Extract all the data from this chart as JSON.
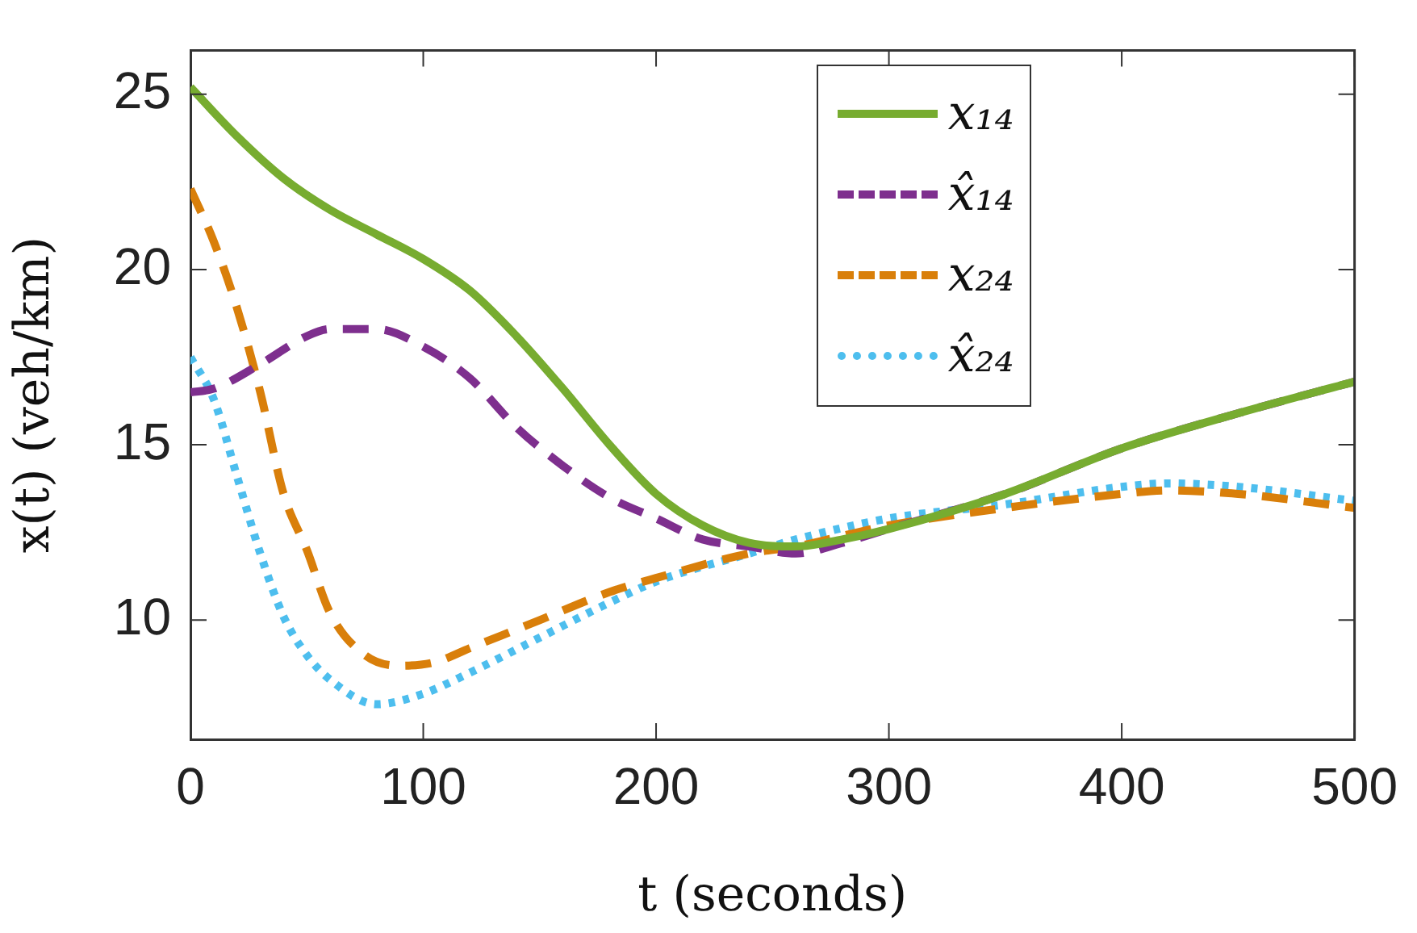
{
  "chart_data": {
    "type": "line",
    "xlabel": "t (seconds)",
    "ylabel": "x(t) (veh/km)",
    "xlim": [
      0,
      500
    ],
    "xticks": [
      0,
      100,
      200,
      300,
      400,
      500
    ],
    "ylim": [
      6.6,
      26.25
    ],
    "yticks": [
      10,
      15,
      20,
      25
    ],
    "grid": false,
    "legend": "top right",
    "marker": "none",
    "series": [
      {
        "name": "x₁₄",
        "color": "#77ac30",
        "line_style": "solid",
        "x": [
          0,
          20,
          40,
          60,
          80,
          100,
          120,
          140,
          160,
          180,
          200,
          220,
          240,
          260,
          280,
          300,
          350,
          400,
          450,
          500
        ],
        "values": [
          25.2,
          23.8,
          22.6,
          21.7,
          21.0,
          20.3,
          19.4,
          18.1,
          16.6,
          15.0,
          13.6,
          12.7,
          12.2,
          12.1,
          12.3,
          12.6,
          13.6,
          14.9,
          15.9,
          16.8
        ]
      },
      {
        "name": "x̂₁₄",
        "color": "#7e2f8e",
        "line_style": "dashed",
        "x": [
          0,
          10,
          30,
          50,
          60,
          80,
          100,
          120,
          140,
          160,
          180,
          200,
          220,
          240,
          260,
          280,
          300,
          350,
          400,
          450,
          500
        ],
        "values": [
          16.5,
          16.6,
          17.3,
          18.1,
          18.3,
          18.3,
          17.8,
          16.9,
          15.5,
          14.4,
          13.5,
          12.9,
          12.3,
          12.1,
          11.9,
          12.2,
          12.6,
          13.6,
          14.9,
          15.9,
          16.8
        ]
      },
      {
        "name": "x₂₄",
        "color": "#d97f0a",
        "line_style": "dashed",
        "x": [
          0,
          10,
          20,
          30,
          40,
          50,
          60,
          75,
          90,
          105,
          120,
          150,
          180,
          200,
          240,
          260,
          300,
          350,
          400,
          420,
          450,
          500
        ],
        "values": [
          22.3,
          20.8,
          18.9,
          16.5,
          13.6,
          12.0,
          10.2,
          9.0,
          8.7,
          8.8,
          9.2,
          10.0,
          10.8,
          11.2,
          11.9,
          12.1,
          12.7,
          13.2,
          13.6,
          13.7,
          13.6,
          13.2
        ]
      },
      {
        "name": "x̂₂₄",
        "color": "#4dbeee",
        "line_style": "dotted",
        "x": [
          0,
          10,
          20,
          30,
          40,
          50,
          60,
          80,
          100,
          120,
          150,
          180,
          200,
          240,
          260,
          300,
          350,
          400,
          420,
          450,
          500
        ],
        "values": [
          17.5,
          16.3,
          14.1,
          11.9,
          10.1,
          9.0,
          8.3,
          7.6,
          7.9,
          8.5,
          9.5,
          10.5,
          11.1,
          11.9,
          12.3,
          12.9,
          13.3,
          13.8,
          13.9,
          13.8,
          13.4
        ]
      }
    ]
  }
}
